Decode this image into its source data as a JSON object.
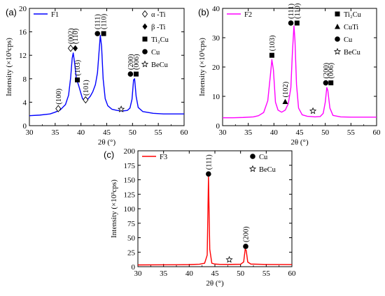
{
  "chart_data": [
    {
      "type": "line",
      "panel": "(a)",
      "series": [
        {
          "name": "F1",
          "color": "#0000ff",
          "points": [
            [
              30,
              1.7
            ],
            [
              32,
              1.8
            ],
            [
              34,
              2.0
            ],
            [
              35,
              2.3
            ],
            [
              36,
              2.7
            ],
            [
              37,
              3.6
            ],
            [
              37.6,
              5.2
            ],
            [
              38.0,
              8.2
            ],
            [
              38.3,
              11.5
            ],
            [
              38.5,
              12.4
            ],
            [
              38.8,
              10.5
            ],
            [
              39.1,
              8.0
            ],
            [
              39.5,
              7.0
            ],
            [
              39.9,
              5.8
            ],
            [
              40.3,
              4.6
            ],
            [
              40.8,
              4.2
            ],
            [
              41.3,
              4.5
            ],
            [
              41.8,
              5.0
            ],
            [
              42.3,
              5.8
            ],
            [
              42.8,
              7.0
            ],
            [
              43.2,
              9.0
            ],
            [
              43.5,
              12.5
            ],
            [
              43.75,
              15.4
            ],
            [
              44.0,
              13.5
            ],
            [
              44.3,
              8.0
            ],
            [
              44.7,
              4.6
            ],
            [
              45.2,
              3.4
            ],
            [
              46,
              2.8
            ],
            [
              47,
              2.6
            ],
            [
              48,
              2.5
            ],
            [
              49,
              2.6
            ],
            [
              49.5,
              3.0
            ],
            [
              49.9,
              4.5
            ],
            [
              50.2,
              7.8
            ],
            [
              50.4,
              8.0
            ],
            [
              50.7,
              5.0
            ],
            [
              51.1,
              3.1
            ],
            [
              52,
              2.4
            ],
            [
              54,
              2.1
            ],
            [
              56,
              2.0
            ],
            [
              58,
              2.0
            ],
            [
              60,
              2.0
            ]
          ]
        }
      ],
      "xlabel": "2θ (°)",
      "ylabel": "Intensity (×10³cps)",
      "xlim": [
        30,
        60
      ],
      "ylim": [
        0,
        20
      ],
      "xticks": [
        30,
        35,
        40,
        45,
        50,
        55,
        60
      ],
      "yticks": [
        0,
        4,
        8,
        12,
        16,
        20
      ],
      "legend_position": "top-right",
      "legend": [
        {
          "marker": "diamond-open",
          "label": "α -Ti"
        },
        {
          "marker": "diamond-filled",
          "label": "β -Ti"
        },
        {
          "marker": "square",
          "label": "Ti₂Cu"
        },
        {
          "marker": "circle",
          "label": "Cu"
        },
        {
          "marker": "star",
          "label": "BeCu"
        }
      ],
      "annotations": [
        {
          "x": 35.6,
          "y": 2.9,
          "marker": "diamond-open",
          "text": "(100)"
        },
        {
          "x": 38.0,
          "y": 13.2,
          "marker": "diamond-open",
          "text": "(002)"
        },
        {
          "x": 38.9,
          "y": 13.2,
          "marker": "diamond-filled",
          "text": "(110)"
        },
        {
          "x": 39.3,
          "y": 7.8,
          "marker": "square",
          "text": "(103)"
        },
        {
          "x": 40.9,
          "y": 4.4,
          "marker": "diamond-open",
          "text": "(101)"
        },
        {
          "x": 43.2,
          "y": 15.7,
          "marker": "circle",
          "text": "(111)"
        },
        {
          "x": 44.4,
          "y": 15.7,
          "marker": "square",
          "text": "(110)"
        },
        {
          "x": 47.8,
          "y": 2.8,
          "marker": "star",
          "text": ""
        },
        {
          "x": 49.6,
          "y": 8.8,
          "marker": "circle",
          "text": "(200)"
        },
        {
          "x": 50.7,
          "y": 8.8,
          "marker": "square",
          "text": "(006)"
        }
      ]
    },
    {
      "type": "line",
      "panel": "(b)",
      "series": [
        {
          "name": "F2",
          "color": "#ff00ff",
          "points": [
            [
              30,
              2.7
            ],
            [
              32,
              2.7
            ],
            [
              34,
              2.8
            ],
            [
              36,
              3.0
            ],
            [
              37,
              3.4
            ],
            [
              38,
              4.5
            ],
            [
              38.8,
              8.5
            ],
            [
              39.3,
              17.0
            ],
            [
              39.6,
              22.5
            ],
            [
              39.9,
              19.0
            ],
            [
              40.3,
              8.0
            ],
            [
              40.8,
              5.3
            ],
            [
              41.5,
              4.6
            ],
            [
              42.2,
              5.3
            ],
            [
              42.8,
              7.5
            ],
            [
              43.3,
              13.0
            ],
            [
              43.6,
              25.0
            ],
            [
              43.9,
              34.0
            ],
            [
              44.1,
              29.0
            ],
            [
              44.4,
              14.0
            ],
            [
              44.8,
              6.0
            ],
            [
              45.5,
              3.7
            ],
            [
              46.5,
              3.2
            ],
            [
              48,
              3.0
            ],
            [
              49,
              3.1
            ],
            [
              49.6,
              4.2
            ],
            [
              50.0,
              8.0
            ],
            [
              50.3,
              13.0
            ],
            [
              50.5,
              12.0
            ],
            [
              50.9,
              6.0
            ],
            [
              51.5,
              3.5
            ],
            [
              53,
              3.0
            ],
            [
              55,
              2.9
            ],
            [
              57,
              2.9
            ],
            [
              60,
              2.9
            ]
          ]
        }
      ],
      "xlabel": "2θ (°)",
      "ylabel": "Intensity (×10³cps)",
      "xlim": [
        30,
        60
      ],
      "ylim": [
        0,
        40
      ],
      "xticks": [
        30,
        35,
        40,
        45,
        50,
        55,
        60
      ],
      "yticks": [
        0,
        10,
        20,
        30,
        40
      ],
      "legend_position": "top-right",
      "legend": [
        {
          "marker": "square",
          "label": "Ti₂Cu"
        },
        {
          "marker": "triangle",
          "label": "CuTi"
        },
        {
          "marker": "circle",
          "label": "Cu"
        },
        {
          "marker": "star",
          "label": "BeCu"
        }
      ],
      "annotations": [
        {
          "x": 39.6,
          "y": 24.0,
          "marker": "square",
          "text": "(103)"
        },
        {
          "x": 42.2,
          "y": 8.2,
          "marker": "triangle",
          "text": "(102)"
        },
        {
          "x": 43.3,
          "y": 35.0,
          "marker": "circle",
          "text": "(111)"
        },
        {
          "x": 44.5,
          "y": 35.0,
          "marker": "square",
          "text": "(110)"
        },
        {
          "x": 47.6,
          "y": 5.0,
          "marker": "star",
          "text": ""
        },
        {
          "x": 50.1,
          "y": 14.6,
          "marker": "circle",
          "text": "(200)"
        },
        {
          "x": 51.1,
          "y": 14.6,
          "marker": "square",
          "text": "(006)"
        }
      ]
    },
    {
      "type": "line",
      "panel": "(c)",
      "series": [
        {
          "name": "F3",
          "color": "#ff0000",
          "points": [
            [
              30,
              3.0
            ],
            [
              35,
              3.2
            ],
            [
              40,
              3.6
            ],
            [
              42,
              4.3
            ],
            [
              43,
              6
            ],
            [
              43.5,
              20
            ],
            [
              43.75,
              155
            ],
            [
              44.0,
              30
            ],
            [
              44.4,
              6
            ],
            [
              45,
              4.5
            ],
            [
              46,
              4.0
            ],
            [
              48,
              3.9
            ],
            [
              50,
              4.2
            ],
            [
              50.6,
              8
            ],
            [
              50.9,
              30
            ],
            [
              51.1,
              28
            ],
            [
              51.4,
              8
            ],
            [
              52,
              4.5
            ],
            [
              55,
              3.8
            ],
            [
              60,
              3.7
            ]
          ]
        }
      ],
      "xlabel": "2θ (°)",
      "ylabel": "Intensity (×10³cps)",
      "xlim": [
        30,
        60
      ],
      "ylim": [
        0,
        200
      ],
      "xticks": [
        30,
        35,
        40,
        45,
        50,
        55,
        60
      ],
      "yticks": [
        0,
        25,
        50,
        75,
        100,
        125,
        150,
        175,
        200
      ],
      "legend_position": "top-right",
      "legend": [
        {
          "marker": "circle",
          "label": "Cu"
        },
        {
          "marker": "star",
          "label": "BeCu"
        }
      ],
      "annotations": [
        {
          "x": 43.75,
          "y": 160,
          "marker": "circle",
          "text": "(111)"
        },
        {
          "x": 47.8,
          "y": 12,
          "marker": "star",
          "text": ""
        },
        {
          "x": 51.0,
          "y": 35,
          "marker": "circle",
          "text": "(200)"
        }
      ]
    }
  ]
}
